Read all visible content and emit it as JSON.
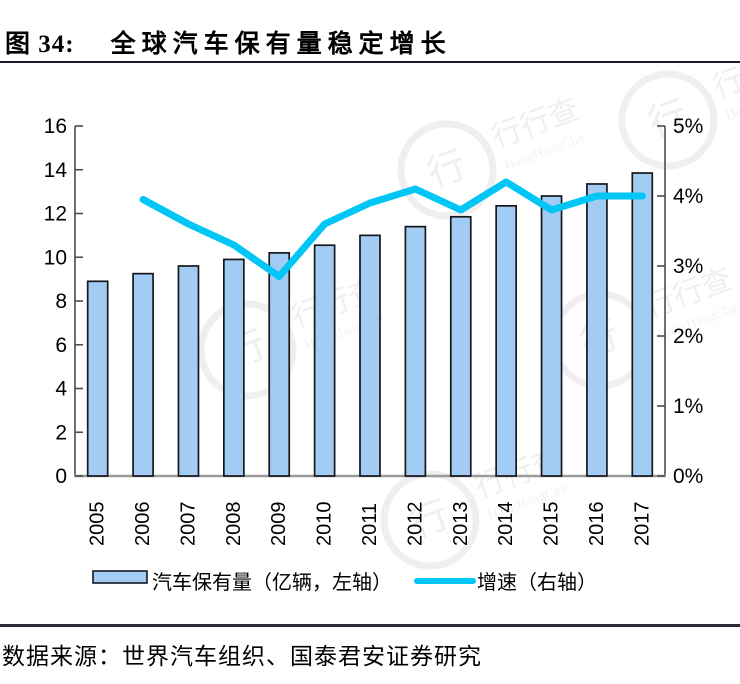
{
  "header": {
    "figure_label": "图 34:",
    "title": "全球汽车保有量稳定增长"
  },
  "footer": {
    "source": "数据来源：世界汽车组织、国泰君安证券研究"
  },
  "watermark": {
    "logo": "行行查",
    "name": "HangHangCha"
  },
  "chart_data": {
    "type": "bar+line",
    "categories": [
      "2005",
      "2006",
      "2007",
      "2008",
      "2009",
      "2010",
      "2011",
      "2012",
      "2013",
      "2014",
      "2015",
      "2016",
      "2017"
    ],
    "series": [
      {
        "name": "汽车保有量（亿辆，左轴）",
        "type": "bar",
        "axis": "left",
        "values": [
          8.9,
          9.25,
          9.6,
          9.9,
          10.2,
          10.55,
          11.0,
          11.4,
          11.85,
          12.35,
          12.8,
          13.35,
          13.85
        ]
      },
      {
        "name": "增速（右轴）",
        "type": "line",
        "axis": "right",
        "values": [
          null,
          3.95,
          3.6,
          3.3,
          2.85,
          3.6,
          3.9,
          4.1,
          3.8,
          4.2,
          3.8,
          4.0,
          4.0
        ]
      }
    ],
    "left_axis": {
      "min": 0,
      "max": 16,
      "tick_step": 2,
      "ticks": [
        "0",
        "2",
        "4",
        "6",
        "8",
        "10",
        "12",
        "14",
        "16"
      ]
    },
    "right_axis": {
      "min": 0,
      "max": 5,
      "tick_step": 1,
      "ticks": [
        "0%",
        "1%",
        "2%",
        "3%",
        "4%",
        "5%"
      ]
    },
    "legend_position": "bottom",
    "grid": false,
    "colors": {
      "bar_fill": "#A3CCF5",
      "bar_border": "#17171c",
      "line": "#00C6F5"
    }
  }
}
